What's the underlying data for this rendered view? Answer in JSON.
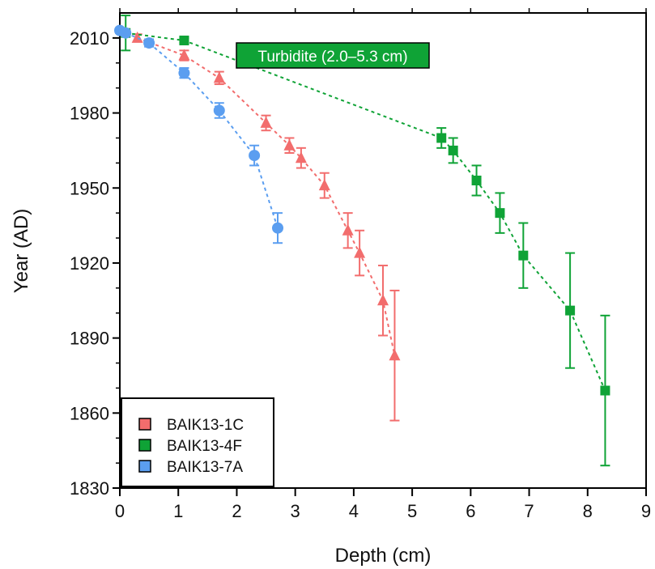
{
  "chart_data": {
    "type": "scatter",
    "xlabel": "Depth (cm)",
    "ylabel": "Year (AD)",
    "xlim": [
      0,
      9
    ],
    "ylim": [
      1830,
      2020
    ],
    "x_ticks": [
      0,
      1,
      2,
      3,
      4,
      5,
      6,
      7,
      8,
      9
    ],
    "y_ticks": [
      1830,
      1860,
      1890,
      1920,
      1950,
      1980,
      2010
    ],
    "grid": false,
    "legend_position": "bottom-left",
    "annotation": {
      "text": "Turbidite (2.0–5.3 cm)",
      "color": "#0fa336",
      "x": 2.1,
      "y": 2006
    },
    "series": [
      {
        "name": "BAIK13-1C",
        "color": "#f26d6d",
        "marker": "triangle",
        "x": [
          0.3,
          1.1,
          1.7,
          2.5,
          2.9,
          3.1,
          3.5,
          3.9,
          4.1,
          4.5,
          4.7
        ],
        "y": [
          2010,
          2003,
          1994,
          1976,
          1967,
          1962,
          1951,
          1933,
          1924,
          1905,
          1883
        ],
        "err": [
          1.5,
          2,
          2.5,
          3,
          3,
          4,
          5,
          7,
          9,
          14,
          26
        ]
      },
      {
        "name": "BAIK13-4F",
        "color": "#0fa336",
        "marker": "square",
        "x": [
          0.1,
          1.1,
          5.5,
          5.7,
          6.1,
          6.5,
          6.9,
          7.7,
          8.3
        ],
        "y": [
          2012,
          2009,
          1970,
          1965,
          1953,
          1940,
          1923,
          1901,
          1869
        ],
        "err": [
          7,
          1,
          4,
          5,
          6,
          8,
          13,
          23,
          30
        ]
      },
      {
        "name": "BAIK13-7A",
        "color": "#5b9ef0",
        "marker": "circle",
        "x": [
          0.0,
          0.1,
          0.5,
          1.1,
          1.7,
          2.3,
          2.7
        ],
        "y": [
          2013,
          2012,
          2008,
          1996,
          1981,
          1963,
          1934
        ],
        "err": [
          1,
          1,
          1.5,
          2,
          3,
          4,
          6
        ]
      }
    ]
  }
}
